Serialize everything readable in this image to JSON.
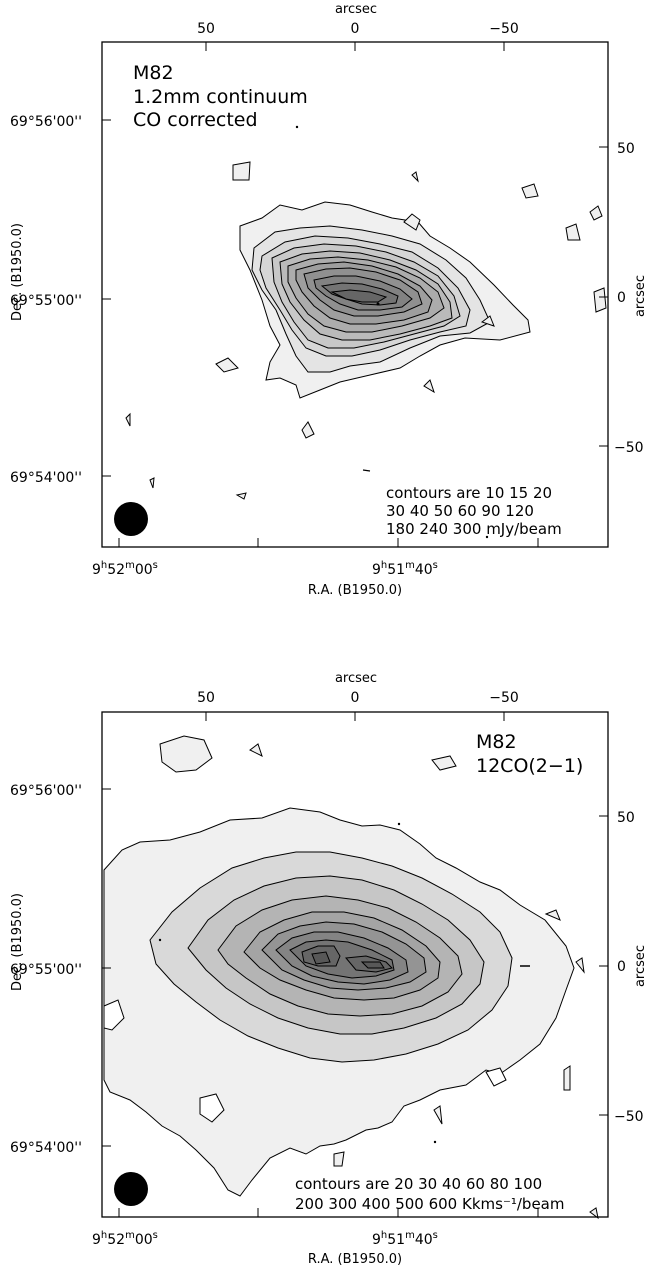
{
  "chart_data": [
    {
      "type": "contour",
      "source": "M82",
      "annotations": [
        "M82",
        "1.2mm continuum",
        "CO corrected"
      ],
      "contour_note": [
        "contours are 10 15 20",
        "30 40 50 60 90 120",
        "180 240 300 mJy/beam"
      ],
      "contour_levels": [
        10,
        15,
        20,
        30,
        40,
        50,
        60,
        90,
        120,
        180,
        240,
        300
      ],
      "contour_units": "mJy/beam",
      "top_axis": {
        "label": "arcsec",
        "ticks": [
          "50",
          "0",
          "−50"
        ]
      },
      "right_axis": {
        "label": "arcsec",
        "ticks": [
          "50",
          "0",
          "−50"
        ]
      },
      "left_axis": {
        "label": "Dec.  (B1950.0)",
        "ticks": [
          "69°56'00''",
          "69°55'00''",
          "69°54'00''"
        ]
      },
      "bottom_axis": {
        "label": "R.A.  (B1950.0)",
        "ticks": [
          {
            "h": "9",
            "m": "52",
            "s": "00"
          },
          {
            "h": "9",
            "m": "51",
            "s": "40"
          }
        ]
      },
      "beam": "filled circle, lower-left"
    },
    {
      "type": "contour",
      "source": "M82",
      "annotations": [
        "M82",
        "12CO(2−1)"
      ],
      "contour_note": [
        "contours are 20 30 40 60 80 100",
        "200 300 400 500 600 Kkms⁻¹/beam"
      ],
      "contour_levels": [
        20,
        30,
        40,
        60,
        80,
        100,
        200,
        300,
        400,
        500,
        600
      ],
      "contour_units": "Kkms-1/beam",
      "top_axis": {
        "label": "arcsec",
        "ticks": [
          "50",
          "0",
          "−50"
        ]
      },
      "right_axis": {
        "label": "arcsec",
        "ticks": [
          "50",
          "0",
          "−50"
        ]
      },
      "left_axis": {
        "label": "Dec.  (B1950.0)",
        "ticks": [
          "69°56'00''",
          "69°55'00''",
          "69°54'00''"
        ]
      },
      "bottom_axis": {
        "label": "R.A.  (B1950.0)",
        "ticks": [
          {
            "h": "9",
            "m": "52",
            "s": "00"
          },
          {
            "h": "9",
            "m": "51",
            "s": "40"
          }
        ]
      },
      "beam": "filled circle, lower-left"
    }
  ]
}
